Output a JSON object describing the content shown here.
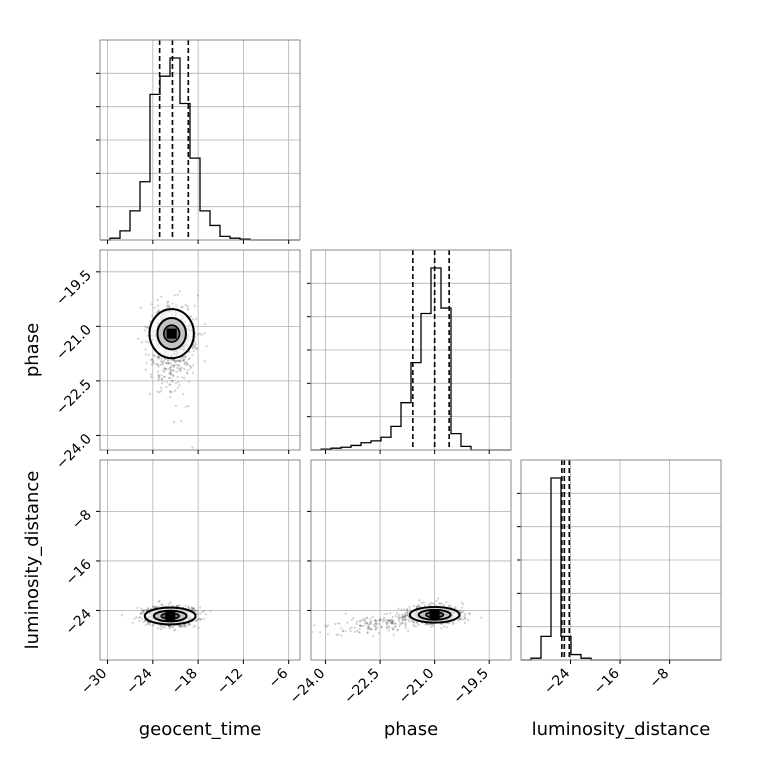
{
  "chart_data": {
    "type": "corner",
    "parameters": [
      "geocent_time",
      "phase",
      "luminosity_distance"
    ],
    "axis_labels": {
      "x": [
        "geocent_time",
        "phase",
        "luminosity_distance"
      ],
      "y": [
        "",
        "phase",
        "luminosity_distance"
      ]
    },
    "ranges": {
      "geocent_time": [
        -31,
        -4.5
      ],
      "phase": [
        -24.4,
        -18.9
      ],
      "luminosity_distance": [
        -32,
        0.3
      ]
    },
    "ticks": {
      "geocent_time": [
        -30,
        -24,
        -18,
        -12,
        -6
      ],
      "phase": [
        -24.0,
        -22.5,
        -21.0,
        -19.5
      ],
      "luminosity_distance": [
        -24,
        -16,
        -8
      ]
    },
    "tick_labels": {
      "geocent_time": [
        "−30",
        "−24",
        "−18",
        "−12",
        "−6"
      ],
      "phase": [
        "−24.0",
        "−22.5",
        "−21.0",
        "−19.5"
      ],
      "luminosity_distance": [
        "−24",
        "−16",
        "−8"
      ]
    },
    "histograms": {
      "geocent_time": {
        "edges": [
          -31,
          -29.675,
          -28.35,
          -27.025,
          -25.7,
          -24.375,
          -23.05,
          -21.725,
          -20.4,
          -19.075,
          -17.75,
          -16.425,
          -15.1,
          -13.775,
          -12.45,
          -11.125,
          -9.8,
          -8.475,
          -7.15,
          -5.825,
          -4.5
        ],
        "counts": [
          0,
          1,
          5,
          16,
          32,
          80,
          90,
          100,
          75,
          45,
          16,
          8,
          2,
          1,
          0.5,
          0,
          0,
          0,
          0,
          0
        ],
        "quantiles": [
          -23.1,
          -21.4,
          -19.3
        ]
      },
      "phase": {
        "edges": [
          -24.4,
          -24.125,
          -23.85,
          -23.575,
          -23.3,
          -23.025,
          -22.75,
          -22.475,
          -22.2,
          -21.925,
          -21.65,
          -21.375,
          -21.1,
          -20.825,
          -20.55,
          -20.275,
          -20,
          -19.725,
          -19.45,
          -19.175,
          -18.9
        ],
        "counts": [
          0,
          0.5,
          1,
          1.5,
          2.5,
          4,
          5,
          7,
          13,
          26,
          48,
          75,
          100,
          78,
          9,
          2,
          0,
          0,
          0,
          0
        ],
        "quantiles": [
          -21.6,
          -21.0,
          -20.6
        ]
      },
      "luminosity_distance": {
        "edges": [
          -32,
          -30.385,
          -28.77,
          -27.155,
          -25.54,
          -23.925,
          -22.31,
          -20.695,
          -19.08,
          -17.465,
          -15.85,
          -14.235,
          -12.62,
          -11.005,
          -9.39,
          -7.775,
          -6.16,
          -4.545,
          -2.93,
          -1.315,
          0.3
        ],
        "counts": [
          0,
          1,
          13,
          100,
          13,
          3,
          1,
          0,
          0,
          0,
          0,
          0,
          0,
          0,
          0,
          0,
          0,
          0,
          0,
          0
        ],
        "quantiles": [
          -25.4,
          -25.0,
          -24.2
        ]
      }
    },
    "scatter_clusters": {
      "phase_vs_geocent_time": {
        "x": "geocent_time",
        "y": "phase",
        "center": [
          -21.5,
          -21.2
        ],
        "spread": [
          2.8,
          0.75
        ],
        "tail": [
          0,
          -0.45
        ]
      },
      "luminosity_distance_vs_geocent_time": {
        "x": "geocent_time",
        "y": "luminosity_distance",
        "center": [
          -21.7,
          -24.9
        ],
        "spread": [
          3.2,
          1.5
        ],
        "tail": [
          0,
          0
        ]
      },
      "luminosity_distance_vs_phase": {
        "x": "phase",
        "y": "luminosity_distance",
        "center": [
          -21.0,
          -24.7
        ],
        "spread": [
          0.65,
          1.4
        ],
        "tail": [
          -0.9,
          -0.8
        ]
      }
    },
    "grid": true,
    "colors": {
      "line": "#000000",
      "grid": "#b0b0b0",
      "points": "#000000"
    }
  }
}
